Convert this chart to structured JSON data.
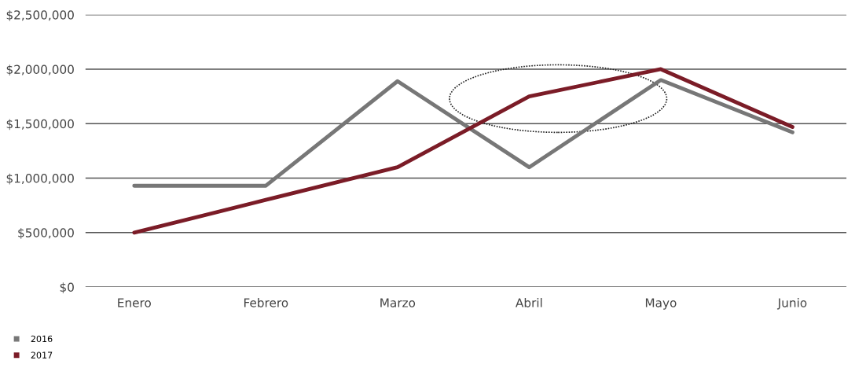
{
  "chart_data": {
    "type": "line",
    "categories": [
      "Enero",
      "Febrero",
      "Marzo",
      "Abril",
      "Mayo",
      "Junio"
    ],
    "series": [
      {
        "name": "2016",
        "color": "#777777",
        "values": [
          930000,
          930000,
          1890000,
          1100000,
          1900000,
          1420000
        ]
      },
      {
        "name": "2017",
        "color": "#7b1c27",
        "values": [
          500000,
          800000,
          1100000,
          1750000,
          2000000,
          1470000
        ]
      }
    ],
    "ylim": [
      0,
      2500000
    ],
    "yticks": [
      {
        "value": 0,
        "label": "$0"
      },
      {
        "value": 500000,
        "label": "$500,000"
      },
      {
        "value": 1000000,
        "label": "$1,000,000"
      },
      {
        "value": 1500000,
        "label": "$1,500,000"
      },
      {
        "value": 2000000,
        "label": "$2,000,000"
      },
      {
        "value": 2500000,
        "label": "$2,500,000"
      }
    ],
    "grid": "y",
    "legend": "bottom left",
    "marker": "none",
    "line_style": "solid"
  }
}
